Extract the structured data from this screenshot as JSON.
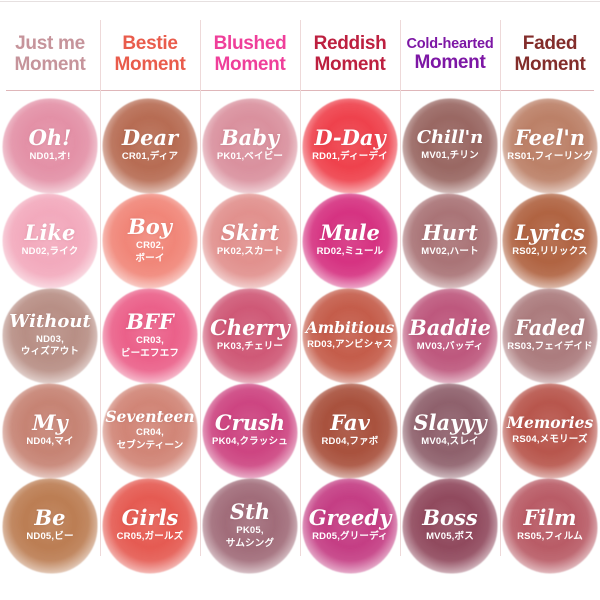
{
  "page": {
    "background": "#ffffff",
    "rule_color": "#d9a9ad",
    "divider_color": "#eed9d9"
  },
  "columns": [
    {
      "id": "just-me",
      "header": {
        "lines": [
          "Just me",
          "Moment"
        ],
        "color": "#c6949b"
      },
      "swatches": [
        {
          "name": "Oh!",
          "code_lines": [
            "ND01,オ!"
          ],
          "color": "#e28ca3"
        },
        {
          "name": "Like",
          "code_lines": [
            "ND02,ライク"
          ],
          "color": "#f2a6ba"
        },
        {
          "name": "Without",
          "code_lines": [
            "ND03,",
            "ウィズアウト"
          ],
          "color": "#b58a80"
        },
        {
          "name": "My",
          "code_lines": [
            "ND04,マイ"
          ],
          "color": "#c47e6e"
        },
        {
          "name": "Be",
          "code_lines": [
            "ND05,ビー"
          ],
          "color": "#b9784c"
        }
      ]
    },
    {
      "id": "bestie",
      "header": {
        "lines": [
          "Bestie",
          "Moment"
        ],
        "color": "#e95c4c"
      },
      "swatches": [
        {
          "name": "Dear",
          "code_lines": [
            "CR01,ディア"
          ],
          "color": "#b4664c"
        },
        {
          "name": "Boy",
          "code_lines": [
            "CR02,",
            "ボーイ"
          ],
          "color": "#f08173"
        },
        {
          "name": "BFF",
          "code_lines": [
            "CR03,",
            "ビーエフエフ"
          ],
          "color": "#ea5a85"
        },
        {
          "name": "Seventeen",
          "code_lines": [
            "CR04,",
            "セブンティーン"
          ],
          "color": "#cf8071"
        },
        {
          "name": "Girls",
          "code_lines": [
            "CR05,ガールズ"
          ],
          "color": "#e4544b"
        }
      ]
    },
    {
      "id": "blushed",
      "header": {
        "lines": [
          "Blushed",
          "Moment"
        ],
        "color": "#ef3f9a"
      },
      "swatches": [
        {
          "name": "Baby",
          "code_lines": [
            "PK01,ベイビー"
          ],
          "color": "#d88c9a"
        },
        {
          "name": "Skirt",
          "code_lines": [
            "PK02,スカート"
          ],
          "color": "#e08c89"
        },
        {
          "name": "Cherry",
          "code_lines": [
            "PK03,チェリー"
          ],
          "color": "#cd5271"
        },
        {
          "name": "Crush",
          "code_lines": [
            "PK04,クラッシュ"
          ],
          "color": "#cb3d7c"
        },
        {
          "name": "Sth",
          "code_lines": [
            "PK05,",
            "サムシング"
          ],
          "color": "#9d6674"
        }
      ]
    },
    {
      "id": "reddish",
      "header": {
        "lines": [
          "Reddish",
          "Moment"
        ],
        "color": "#bd2040"
      },
      "swatches": [
        {
          "name": "D-Day",
          "code_lines": [
            "RD01,ディーデイ"
          ],
          "color": "#ee3a45"
        },
        {
          "name": "Mule",
          "code_lines": [
            "RD02,ミュール"
          ],
          "color": "#d42a7c"
        },
        {
          "name": "Ambitious",
          "code_lines": [
            "RD03,アンビシャス"
          ],
          "color": "#c25643"
        },
        {
          "name": "Fav",
          "code_lines": [
            "RD04,ファボ"
          ],
          "color": "#a54a35"
        },
        {
          "name": "Greedy",
          "code_lines": [
            "RD05,グリーディ"
          ],
          "color": "#c2367f"
        }
      ]
    },
    {
      "id": "cold-hearted",
      "header": {
        "lines": [
          "Cold-hearted",
          "Moment"
        ],
        "color": "#7d17a5"
      },
      "swatches": [
        {
          "name": "Chill'n",
          "code_lines": [
            "MV01,チリン"
          ],
          "color": "#95615c"
        },
        {
          "name": "Hurt",
          "code_lines": [
            "MV02,ハート"
          ],
          "color": "#a66e71"
        },
        {
          "name": "Baddie",
          "code_lines": [
            "MV03,バッディ"
          ],
          "color": "#bb5178"
        },
        {
          "name": "Slayyy",
          "code_lines": [
            "MV04,スレイ"
          ],
          "color": "#8a5a66"
        },
        {
          "name": "Boss",
          "code_lines": [
            "MV05,ボス"
          ],
          "color": "#8c4257"
        }
      ]
    },
    {
      "id": "faded",
      "header": {
        "lines": [
          "Faded",
          "Moment"
        ],
        "color": "#832d2b"
      },
      "swatches": [
        {
          "name": "Feel'n",
          "code_lines": [
            "RS01,フィーリング"
          ],
          "color": "#b97b61"
        },
        {
          "name": "Lyrics",
          "code_lines": [
            "RS02,リリックス"
          ],
          "color": "#ad5d3a"
        },
        {
          "name": "Faded",
          "code_lines": [
            "RS03,フェイデイド"
          ],
          "color": "#a87678"
        },
        {
          "name": "Memories",
          "code_lines": [
            "RS04,メモリーズ"
          ],
          "color": "#b54f45"
        },
        {
          "name": "Film",
          "code_lines": [
            "RS05,フィルム"
          ],
          "color": "#b65560"
        }
      ]
    }
  ],
  "chart_data": {
    "type": "table",
    "title": "",
    "columns": [
      "Just me Moment",
      "Bestie Moment",
      "Blushed Moment",
      "Reddish Moment",
      "Cold-hearted Moment",
      "Faded Moment"
    ],
    "rows": [
      [
        {
          "name": "Oh!",
          "code": "ND01,オ!",
          "color": "#e28ca3"
        },
        {
          "name": "Dear",
          "code": "CR01,ディア",
          "color": "#b4664c"
        },
        {
          "name": "Baby",
          "code": "PK01,ベイビー",
          "color": "#d88c9a"
        },
        {
          "name": "D-Day",
          "code": "RD01,ディーデイ",
          "color": "#ee3a45"
        },
        {
          "name": "Chill'n",
          "code": "MV01,チリン",
          "color": "#95615c"
        },
        {
          "name": "Feel'n",
          "code": "RS01,フィーリング",
          "color": "#b97b61"
        }
      ],
      [
        {
          "name": "Like",
          "code": "ND02,ライク",
          "color": "#f2a6ba"
        },
        {
          "name": "Boy",
          "code": "CR02,ボーイ",
          "color": "#f08173"
        },
        {
          "name": "Skirt",
          "code": "PK02,スカート",
          "color": "#e08c89"
        },
        {
          "name": "Mule",
          "code": "RD02,ミュール",
          "color": "#d42a7c"
        },
        {
          "name": "Hurt",
          "code": "MV02,ハート",
          "color": "#a66e71"
        },
        {
          "name": "Lyrics",
          "code": "RS02,リリックス",
          "color": "#ad5d3a"
        }
      ],
      [
        {
          "name": "Without",
          "code": "ND03,ウィズアウト",
          "color": "#b58a80"
        },
        {
          "name": "BFF",
          "code": "CR03,ビーエフエフ",
          "color": "#ea5a85"
        },
        {
          "name": "Cherry",
          "code": "PK03,チェリー",
          "color": "#cd5271"
        },
        {
          "name": "Ambitious",
          "code": "RD03,アンビシャス",
          "color": "#c25643"
        },
        {
          "name": "Baddie",
          "code": "MV03,バッディ",
          "color": "#bb5178"
        },
        {
          "name": "Faded",
          "code": "RS03,フェイデイド",
          "color": "#a87678"
        }
      ],
      [
        {
          "name": "My",
          "code": "ND04,マイ",
          "color": "#c47e6e"
        },
        {
          "name": "Seventeen",
          "code": "CR04,セブンティーン",
          "color": "#cf8071"
        },
        {
          "name": "Crush",
          "code": "PK04,クラッシュ",
          "color": "#cb3d7c"
        },
        {
          "name": "Fav",
          "code": "RD04,ファボ",
          "color": "#a54a35"
        },
        {
          "name": "Slayyy",
          "code": "MV04,スレイ",
          "color": "#8a5a66"
        },
        {
          "name": "Memories",
          "code": "RS04,メモリーズ",
          "color": "#b54f45"
        }
      ],
      [
        {
          "name": "Be",
          "code": "ND05,ビー",
          "color": "#b9784c"
        },
        {
          "name": "Girls",
          "code": "CR05,ガールズ",
          "color": "#e4544b"
        },
        {
          "name": "Sth",
          "code": "PK05,サムシング",
          "color": "#9d6674"
        },
        {
          "name": "Greedy",
          "code": "RD05,グリーディ",
          "color": "#c2367f"
        },
        {
          "name": "Boss",
          "code": "MV05,ボス",
          "color": "#8c4257"
        },
        {
          "name": "Film",
          "code": "RS05,フィルム",
          "color": "#b65560"
        }
      ]
    ]
  }
}
